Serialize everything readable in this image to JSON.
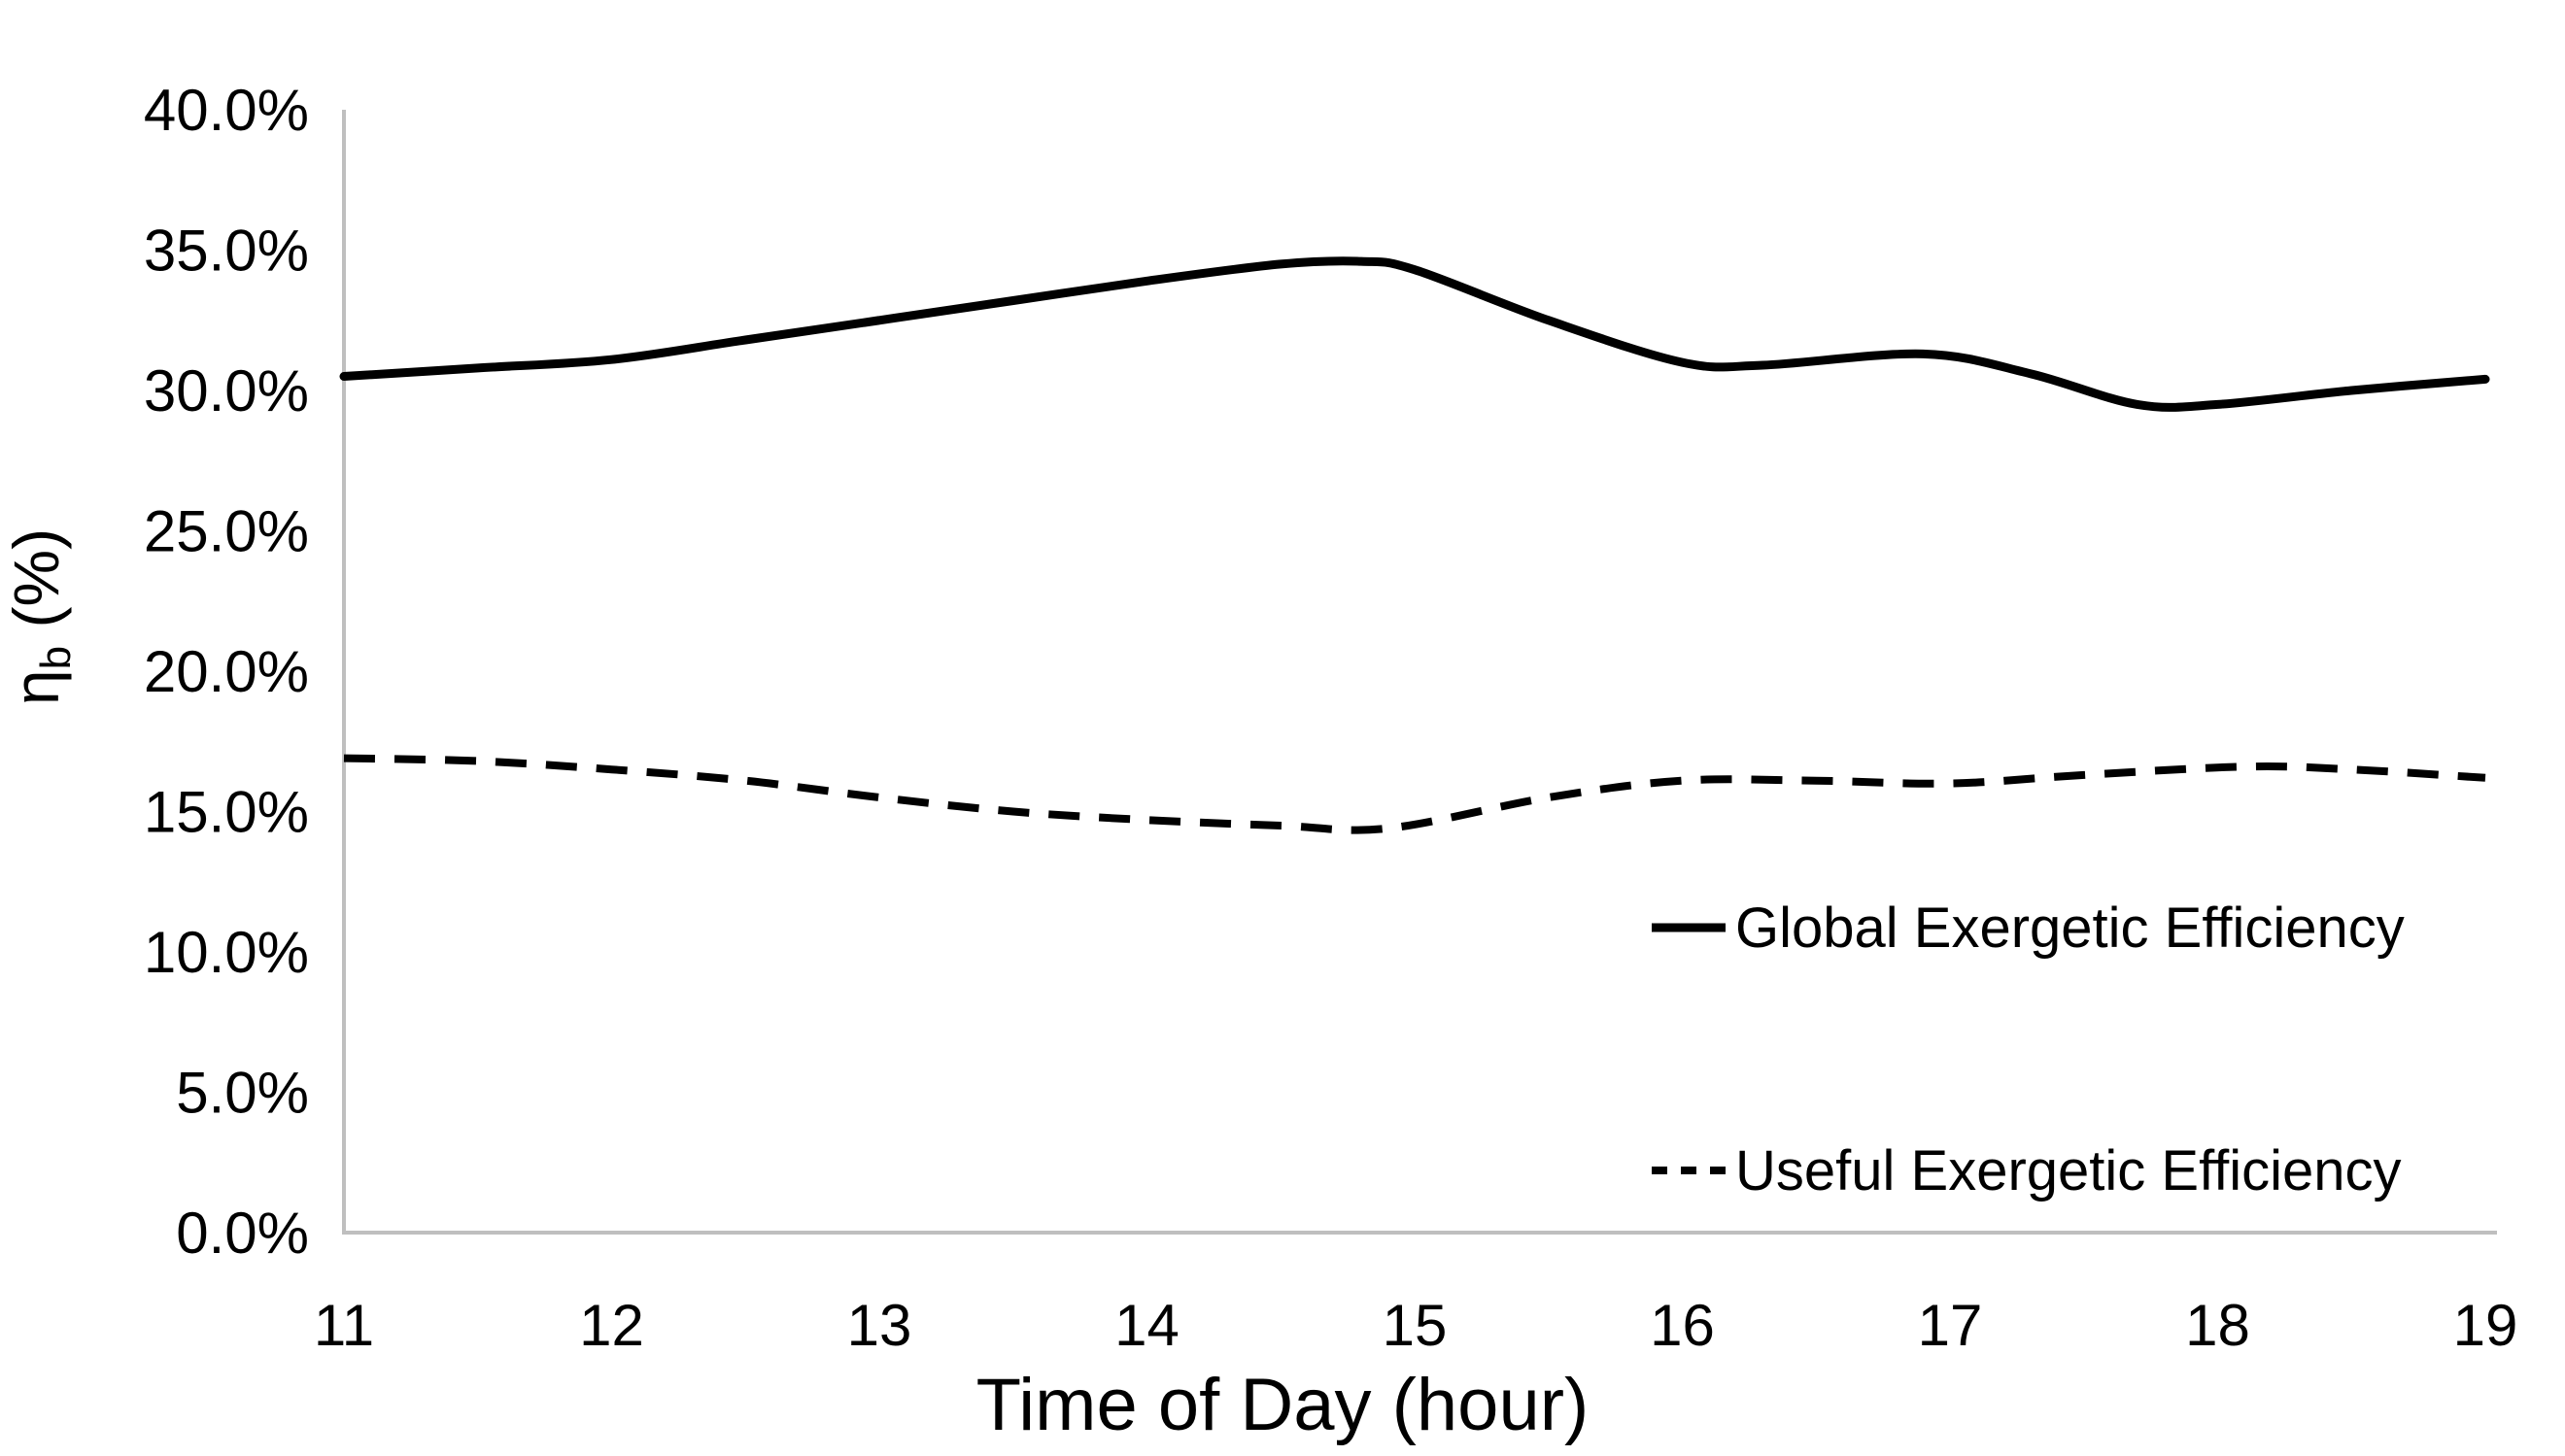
{
  "page": {
    "background": "#FFFFFF"
  },
  "chart_data": {
    "type": "line",
    "title": "",
    "xlabel": "Time of Day (hour)",
    "ylabel_base": "η",
    "ylabel_sub": "b",
    "ylabel_suffix": " (%)",
    "xlim": [
      11,
      19
    ],
    "ylim": [
      0,
      40
    ],
    "grid": false,
    "axis_color": "#BFBFBF",
    "text_color": "#000000",
    "line_color": "#000000",
    "x_ticks": [
      11,
      12,
      13,
      14,
      15,
      16,
      17,
      18,
      19
    ],
    "x_tick_labels": [
      "11",
      "12",
      "13",
      "14",
      "15",
      "16",
      "17",
      "18",
      "19"
    ],
    "y_ticks": [
      0,
      5,
      10,
      15,
      20,
      25,
      30,
      35,
      40
    ],
    "y_tick_labels": [
      "0.0%",
      "5.0%",
      "10.0%",
      "15.0%",
      "20.0%",
      "25.0%",
      "30.0%",
      "35.0%",
      "40.0%"
    ],
    "legend_position": "inside-right",
    "series": [
      {
        "name": "Global Exergetic Efficiency",
        "dash": "solid",
        "color": "#000000",
        "x": [
          11,
          11.5,
          12,
          12.5,
          13,
          13.5,
          14,
          14.5,
          14.8,
          15,
          15.5,
          16,
          16.3,
          16.9,
          17.3,
          17.7,
          18,
          18.5,
          19
        ],
        "y": [
          30.5,
          30.8,
          31.1,
          31.8,
          32.5,
          33.2,
          33.9,
          34.5,
          34.6,
          34.3,
          32.5,
          31.0,
          30.9,
          31.3,
          30.6,
          29.5,
          29.5,
          30.0,
          30.4
        ]
      },
      {
        "name": "Useful Exergetic Efficiency",
        "dash": "dashed",
        "color": "#000000",
        "x": [
          11,
          11.5,
          12,
          12.5,
          13,
          13.5,
          14,
          14.5,
          14.9,
          15.5,
          16,
          16.5,
          17,
          17.5,
          18.1,
          18.5,
          19
        ],
        "y": [
          16.9,
          16.8,
          16.5,
          16.1,
          15.5,
          15.0,
          14.7,
          14.5,
          14.4,
          15.5,
          16.1,
          16.1,
          16.0,
          16.3,
          16.6,
          16.5,
          16.2
        ]
      }
    ]
  }
}
